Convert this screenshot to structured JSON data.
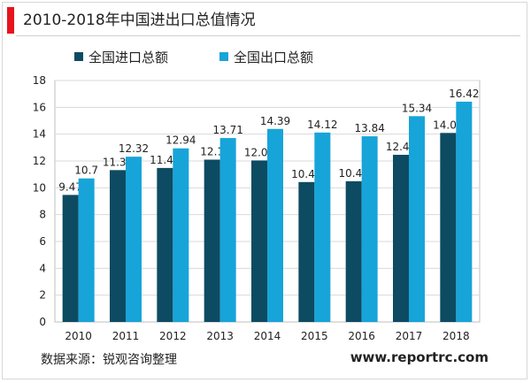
{
  "header": {
    "title": "2010-2018年中国进出口总值情况"
  },
  "footer": {
    "source": "数据来源：锐观咨询整理",
    "site": "www.reportrc.com"
  },
  "colors": {
    "accent": "#e8141b",
    "import": "#0d4b62",
    "export": "#17a4d9"
  },
  "chart_data": {
    "type": "bar",
    "categories": [
      "2010",
      "2011",
      "2012",
      "2013",
      "2014",
      "2015",
      "2016",
      "2017",
      "2018"
    ],
    "series": [
      {
        "name": "全国进口总额",
        "values": [
          9.47,
          11.32,
          11.48,
          12.1,
          12.04,
          10.43,
          10.49,
          12.46,
          14.09
        ],
        "labels": [
          "9.47",
          "11.32",
          "11.48",
          "12.1",
          "12.04",
          "10.43",
          "10.49",
          "12.46",
          "14.09"
        ]
      },
      {
        "name": "全国出口总额",
        "values": [
          10.7,
          12.32,
          12.94,
          13.71,
          14.39,
          14.12,
          13.84,
          15.34,
          16.42
        ],
        "labels": [
          "10.7",
          "12.32",
          "12.94",
          "13.71",
          "14.39",
          "14.12",
          "13.84",
          "15.34",
          "16.42"
        ]
      }
    ],
    "yticks": [
      "0",
      "2",
      "4",
      "6",
      "8",
      "10",
      "12",
      "14",
      "16",
      "18"
    ],
    "ylim": [
      0,
      18
    ],
    "grid": true,
    "legend_position": "top"
  }
}
